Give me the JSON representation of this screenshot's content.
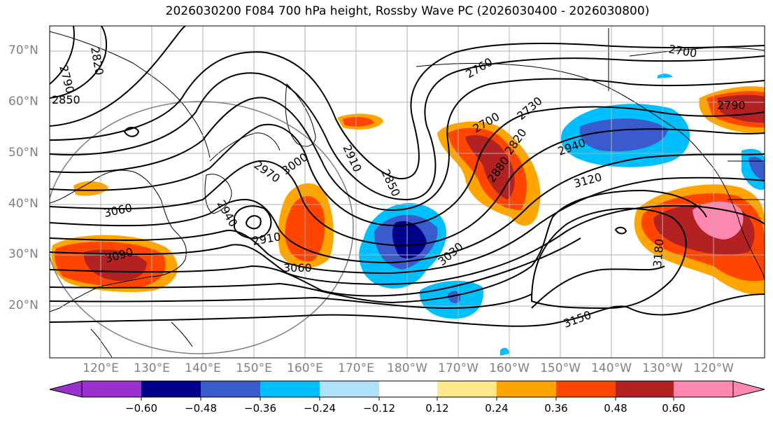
{
  "title": "2026030200 F084 700 hPa height, Rossby Wave PC (2026030400 - 2026030800)",
  "lat_labels": [
    "70°N",
    "60°N",
    "50°N",
    "40°N",
    "30°N",
    "20°N"
  ],
  "lon_labels": [
    "120°E",
    "130°E",
    "140°E",
    "150°E",
    "160°E",
    "170°E",
    "180°W",
    "170°W",
    "160°W",
    "150°W",
    "140°W",
    "130°W",
    "120°W"
  ],
  "contour_labels": [
    "2790",
    "2820",
    "2850",
    "2760",
    "2700",
    "2730",
    "2700",
    "2790",
    "2910",
    "2850",
    "2820",
    "2880",
    "2940",
    "2970",
    "3000",
    "3120",
    "2940",
    "2910",
    "3060",
    "3090",
    "3060",
    "3030",
    "3180",
    "3150"
  ],
  "colorbar": {
    "ticks": [
      "−0.60",
      "−0.48",
      "−0.36",
      "−0.24",
      "−0.12",
      "0.12",
      "0.24",
      "0.36",
      "0.48",
      "0.60"
    ],
    "colors": [
      "#9b30d0",
      "#00008b",
      "#3a5bcc",
      "#00bfff",
      "#b0e0fa",
      "#ffffff",
      "#ffe88a",
      "#ffa500",
      "#ff4500",
      "#b22222",
      "#ff88b0"
    ]
  },
  "colors": {
    "grid": "#b0b0b0",
    "contour": "#000000",
    "label": "#808080"
  }
}
